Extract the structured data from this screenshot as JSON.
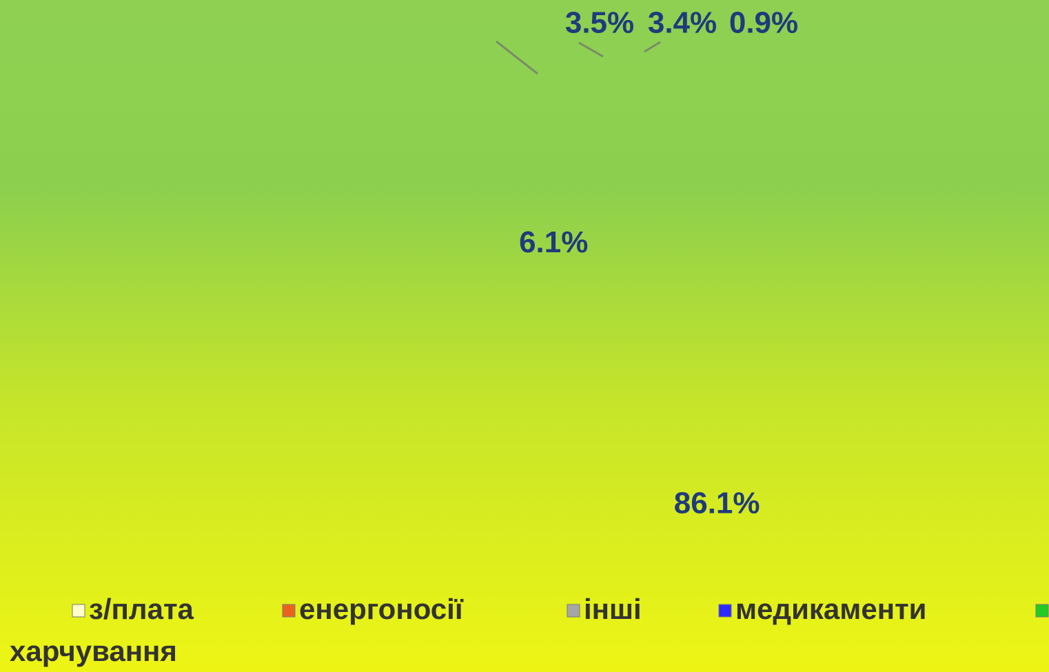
{
  "chart_data": {
    "type": "pie",
    "categories": [
      "з/плата",
      "енергоносії",
      "інші",
      "медикаменти",
      "харчування"
    ],
    "values": [
      86.1,
      6.1,
      3.5,
      3.4,
      0.9
    ],
    "value_labels": [
      "86.1%",
      "6.1%",
      "3.5%",
      "3.4%",
      "0.9%"
    ],
    "colors": [
      "#ffffcc",
      "#e8641e",
      "#a6a6a6",
      "#2b2bff",
      "#22cc22"
    ],
    "legend": "bottom"
  }
}
